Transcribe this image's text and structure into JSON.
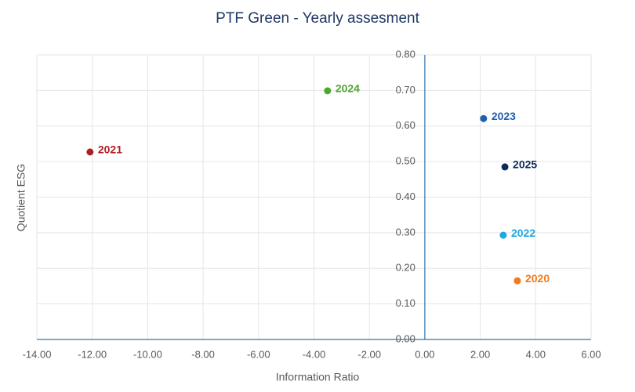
{
  "chart_data": {
    "type": "scatter",
    "title": "PTF Green - Yearly assesment",
    "x_label": "Information Ratio",
    "y_label": "Quotient ESG",
    "xlim": [
      -14,
      6
    ],
    "ylim": [
      0,
      0.8
    ],
    "xticks": [
      {
        "value": -14,
        "label": "-14.00"
      },
      {
        "value": -12,
        "label": "-12.00"
      },
      {
        "value": -10,
        "label": "-10.00"
      },
      {
        "value": -8,
        "label": "-8.00"
      },
      {
        "value": -6,
        "label": "-6.00"
      },
      {
        "value": -4,
        "label": "-4.00"
      },
      {
        "value": -2,
        "label": "-2.00"
      },
      {
        "value": 0,
        "label": "0.00"
      },
      {
        "value": 2,
        "label": "2.00"
      },
      {
        "value": 4,
        "label": "4.00"
      },
      {
        "value": 6,
        "label": "6.00"
      }
    ],
    "yticks": [
      {
        "value": 0,
        "label": "0.00"
      },
      {
        "value": 0.1,
        "label": "0.10"
      },
      {
        "value": 0.2,
        "label": "0.20"
      },
      {
        "value": 0.3,
        "label": "0.30"
      },
      {
        "value": 0.4,
        "label": "0.40"
      },
      {
        "value": 0.5,
        "label": "0.50"
      },
      {
        "value": 0.6,
        "label": "0.60"
      },
      {
        "value": 0.7,
        "label": "0.70"
      },
      {
        "value": 0.8,
        "label": "0.80"
      }
    ],
    "grid": true,
    "series": [
      {
        "name": "2021",
        "color": "#b01f24",
        "x": [
          -12.08
        ],
        "values": [
          0.527
        ]
      },
      {
        "name": "2024",
        "color": "#4ea72e",
        "x": [
          -3.51
        ],
        "values": [
          0.699
        ]
      },
      {
        "name": "2023",
        "color": "#1f5fad",
        "x": [
          2.12
        ],
        "values": [
          0.621
        ]
      },
      {
        "name": "2025",
        "color": "#0e2a5c",
        "x": [
          2.89
        ],
        "values": [
          0.485
        ]
      },
      {
        "name": "2022",
        "color": "#1eaae0",
        "x": [
          2.83
        ],
        "values": [
          0.293
        ]
      },
      {
        "name": "2020",
        "color": "#f07a1f",
        "x": [
          3.34
        ],
        "values": [
          0.165
        ]
      }
    ]
  }
}
